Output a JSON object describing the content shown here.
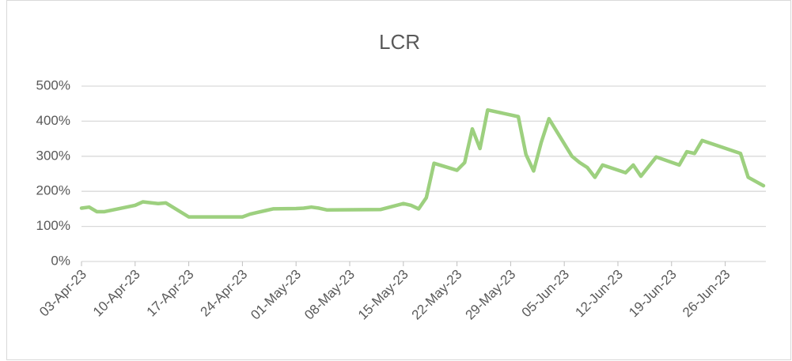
{
  "chart_data": {
    "type": "line",
    "title": "LCR",
    "x": [
      "2023-04-03",
      "2023-04-04",
      "2023-04-05",
      "2023-04-06",
      "2023-04-10",
      "2023-04-11",
      "2023-04-13",
      "2023-04-14",
      "2023-04-17",
      "2023-04-24",
      "2023-04-25",
      "2023-04-26",
      "2023-04-27",
      "2023-04-28",
      "2023-05-01",
      "2023-05-02",
      "2023-05-03",
      "2023-05-04",
      "2023-05-05",
      "2023-05-12",
      "2023-05-15",
      "2023-05-16",
      "2023-05-17",
      "2023-05-18",
      "2023-05-19",
      "2023-05-22",
      "2023-05-23",
      "2023-05-24",
      "2023-05-25",
      "2023-05-26",
      "2023-05-30",
      "2023-05-31",
      "2023-06-01",
      "2023-06-02",
      "2023-06-03",
      "2023-06-06",
      "2023-06-07",
      "2023-06-08",
      "2023-06-09",
      "2023-06-10",
      "2023-06-13",
      "2023-06-14",
      "2023-06-15",
      "2023-06-17",
      "2023-06-20",
      "2023-06-21",
      "2023-06-22",
      "2023-06-23",
      "2023-06-28",
      "2023-06-29",
      "2023-07-01"
    ],
    "series": [
      {
        "name": "LCR",
        "color": "#9dd07f",
        "values": [
          152,
          155,
          142,
          142,
          160,
          170,
          165,
          167,
          127,
          127,
          135,
          140,
          145,
          150,
          151,
          152,
          155,
          152,
          147,
          148,
          165,
          160,
          150,
          182,
          280,
          260,
          282,
          378,
          322,
          432,
          413,
          305,
          258,
          340,
          407,
          300,
          282,
          268,
          240,
          275,
          253,
          275,
          243,
          298,
          275,
          313,
          308,
          345,
          308,
          240,
          216
        ]
      }
    ],
    "xlim": [
      "2023-04-03",
      "2023-07-01"
    ],
    "xticks": [
      {
        "value": "2023-04-03",
        "label": "03-Apr-23"
      },
      {
        "value": "2023-04-10",
        "label": "10-Apr-23"
      },
      {
        "value": "2023-04-17",
        "label": "17-Apr-23"
      },
      {
        "value": "2023-04-24",
        "label": "24-Apr-23"
      },
      {
        "value": "2023-05-01",
        "label": "01-May-23"
      },
      {
        "value": "2023-05-08",
        "label": "08-May-23"
      },
      {
        "value": "2023-05-15",
        "label": "15-May-23"
      },
      {
        "value": "2023-05-22",
        "label": "22-May-23"
      },
      {
        "value": "2023-05-29",
        "label": "29-May-23"
      },
      {
        "value": "2023-06-05",
        "label": "05-Jun-23"
      },
      {
        "value": "2023-06-12",
        "label": "12-Jun-23"
      },
      {
        "value": "2023-06-19",
        "label": "19-Jun-23"
      },
      {
        "value": "2023-06-26",
        "label": "26-Jun-23"
      }
    ],
    "ylim": [
      0,
      500
    ],
    "yticks": [
      {
        "value": 0,
        "label": "0%"
      },
      {
        "value": 100,
        "label": "100%"
      },
      {
        "value": 200,
        "label": "200%"
      },
      {
        "value": 300,
        "label": "300%"
      },
      {
        "value": 400,
        "label": "400%"
      },
      {
        "value": 500,
        "label": "500%"
      }
    ],
    "grid": true
  }
}
